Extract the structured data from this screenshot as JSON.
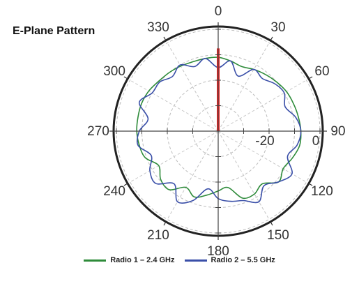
{
  "chart_data": {
    "type": "polar-line",
    "title": "E-Plane Pattern",
    "angle_ticks": [
      {
        "angle": 0,
        "label": "0"
      },
      {
        "angle": 30,
        "label": "30"
      },
      {
        "angle": 60,
        "label": "60"
      },
      {
        "angle": 90,
        "label": "90"
      },
      {
        "angle": 120,
        "label": "120"
      },
      {
        "angle": 150,
        "label": "150"
      },
      {
        "angle": 180,
        "label": "180"
      },
      {
        "angle": 210,
        "label": "210"
      },
      {
        "angle": 240,
        "label": "240"
      },
      {
        "angle": 270,
        "label": "270"
      },
      {
        "angle": 300,
        "label": "300"
      },
      {
        "angle": 330,
        "label": "330"
      }
    ],
    "radial_tick_labels": [
      {
        "value": -20,
        "label": "-20"
      },
      {
        "value": 0,
        "label": "0"
      }
    ],
    "r_range": [
      -40,
      0
    ],
    "grid": true,
    "legend_position": "bottom",
    "series": [
      {
        "name": "Radio 1 – 2.4 GHz",
        "color": "#2e8b3a",
        "theta": [
          0,
          10,
          20,
          30,
          40,
          50,
          60,
          70,
          80,
          90,
          100,
          110,
          120,
          130,
          140,
          150,
          160,
          170,
          180,
          190,
          200,
          210,
          220,
          230,
          240,
          250,
          260,
          270,
          280,
          290,
          300,
          310,
          320,
          330,
          340,
          350
        ],
        "r": [
          -11,
          -12,
          -13,
          -12,
          -11,
          -10,
          -9,
          -8.5,
          -8,
          -7.5,
          -7.5,
          -9,
          -10.5,
          -9,
          -13,
          -11.5,
          -12,
          -17.5,
          -16.5,
          -14.5,
          -12.5,
          -14.5,
          -10,
          -10.5,
          -13,
          -9.5,
          -8.5,
          -8,
          -8,
          -8,
          -8.5,
          -9.5,
          -10,
          -10.5,
          -11,
          -11
        ]
      },
      {
        "name": "Radio 2 – 5.5 GHz",
        "color": "#3a4fa8",
        "theta": [
          0,
          10,
          20,
          30,
          40,
          50,
          60,
          70,
          80,
          90,
          100,
          110,
          120,
          130,
          140,
          150,
          160,
          170,
          180,
          190,
          200,
          210,
          220,
          230,
          240,
          250,
          260,
          270,
          280,
          290,
          300,
          310,
          320,
          330,
          340,
          350
        ],
        "r": [
          -15,
          -12,
          -17,
          -12,
          -13,
          -11,
          -10,
          -12,
          -9,
          -7.5,
          -8.5,
          -11,
          -6.5,
          -9,
          -12,
          -8,
          -11,
          -12,
          -13.5,
          -17,
          -11,
          -8,
          -13,
          -8,
          -9,
          -12,
          -8,
          -9,
          -12,
          -7,
          -10,
          -10,
          -12,
          -10,
          -13,
          -11
        ]
      },
      {
        "name": "",
        "color": "#ee2222",
        "theta": [
          0
        ],
        "r": [
          -7.5
        ]
      }
    ]
  }
}
